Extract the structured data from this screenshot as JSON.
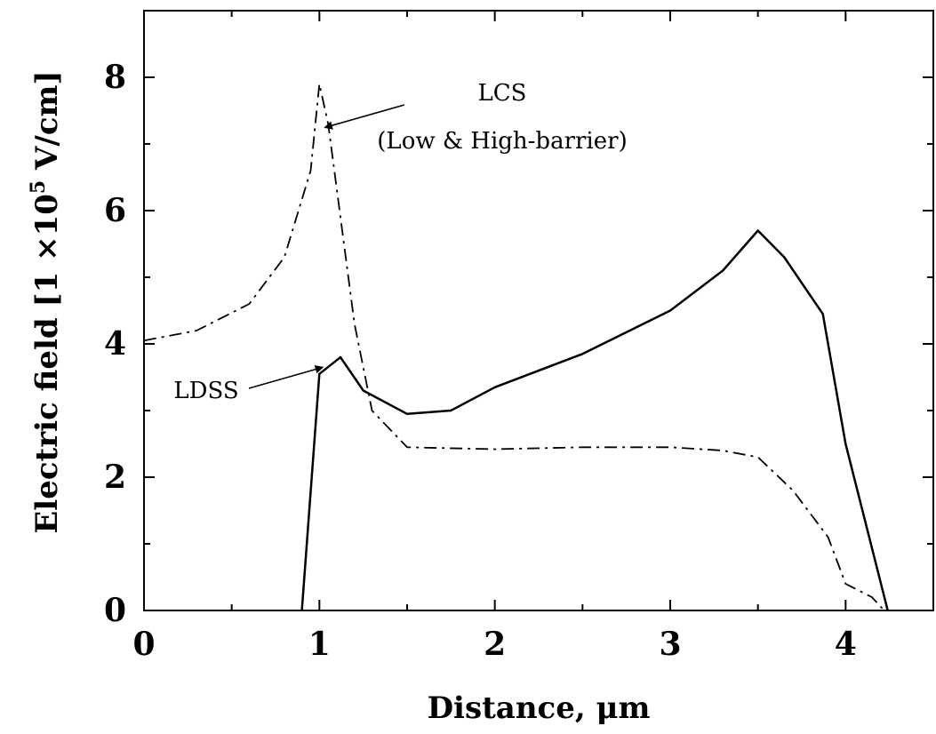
{
  "chart_data": {
    "type": "line",
    "xlabel": "Distance, μm",
    "ylabel_parts": {
      "prefix": "Electric field [1 ×10",
      "exponent": "5",
      "suffix": " V/cm]"
    },
    "xlim": [
      0,
      4.5
    ],
    "ylim": [
      0,
      9
    ],
    "x_ticks": [
      "0",
      "1",
      "2",
      "3",
      "4"
    ],
    "y_ticks": [
      "0",
      "2",
      "4",
      "6",
      "8"
    ],
    "grid": false,
    "series": [
      {
        "name": "LCS (Low & High-barrier)",
        "style": "dash-dot",
        "points": [
          [
            0,
            4.05
          ],
          [
            0.3,
            4.2
          ],
          [
            0.6,
            4.6
          ],
          [
            0.8,
            5.3
          ],
          [
            0.95,
            6.6
          ],
          [
            1.0,
            7.9
          ],
          [
            1.05,
            7.3
          ],
          [
            1.1,
            6.3
          ],
          [
            1.2,
            4.3
          ],
          [
            1.3,
            3.0
          ],
          [
            1.5,
            2.45
          ],
          [
            2.0,
            2.42
          ],
          [
            2.5,
            2.45
          ],
          [
            3.0,
            2.45
          ],
          [
            3.3,
            2.4
          ],
          [
            3.5,
            2.3
          ],
          [
            3.7,
            1.8
          ],
          [
            3.9,
            1.1
          ],
          [
            4.0,
            0.4
          ],
          [
            4.15,
            0.2
          ],
          [
            4.22,
            0
          ]
        ]
      },
      {
        "name": "LDSS",
        "style": "solid",
        "points": [
          [
            0.9,
            0
          ],
          [
            1.0,
            3.55
          ],
          [
            1.12,
            3.8
          ],
          [
            1.25,
            3.3
          ],
          [
            1.5,
            2.95
          ],
          [
            1.75,
            3.0
          ],
          [
            2.0,
            3.35
          ],
          [
            2.5,
            3.85
          ],
          [
            3.0,
            4.5
          ],
          [
            3.3,
            5.1
          ],
          [
            3.5,
            5.7
          ],
          [
            3.65,
            5.3
          ],
          [
            3.87,
            4.45
          ],
          [
            4.0,
            2.5
          ],
          [
            4.24,
            0
          ]
        ]
      }
    ],
    "annotations": [
      {
        "lines": [
          "LCS",
          "(Low & High-barrier)"
        ],
        "arrow_to": [
          1.02,
          7.3
        ]
      },
      {
        "lines": [
          "LDSS"
        ],
        "arrow_to": [
          1.02,
          3.65
        ]
      }
    ]
  }
}
